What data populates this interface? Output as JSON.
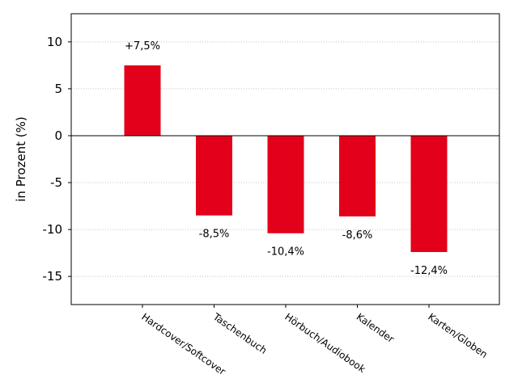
{
  "chart_data": {
    "type": "bar",
    "title": "",
    "xlabel": "",
    "ylabel": "in Prozent (%)",
    "categories": [
      "Hardcover/Softcover",
      "Taschenbuch",
      "Hörbuch/Audiobook",
      "Kalender",
      "Karten/Globen"
    ],
    "series": [
      {
        "values": [
          7.5,
          -8.5,
          -10.4,
          -8.6,
          -12.4
        ]
      }
    ],
    "data_labels": [
      "+7,5%",
      "-8,5%",
      "-10,4%",
      "-8,6%",
      "-12,4%"
    ],
    "ylim": [
      -18,
      13
    ],
    "yticks": [
      10,
      5,
      0,
      -5,
      -10,
      -15
    ],
    "ytick_labels": [
      "10",
      "5",
      "0",
      "-5",
      "-10",
      "-15"
    ],
    "grid": "horizontal dotted",
    "bar_color": "#e2001a",
    "zero_line_color": "#000000",
    "grid_color": "#b0b0b0",
    "xtick_rotation": "rotated -35°"
  }
}
